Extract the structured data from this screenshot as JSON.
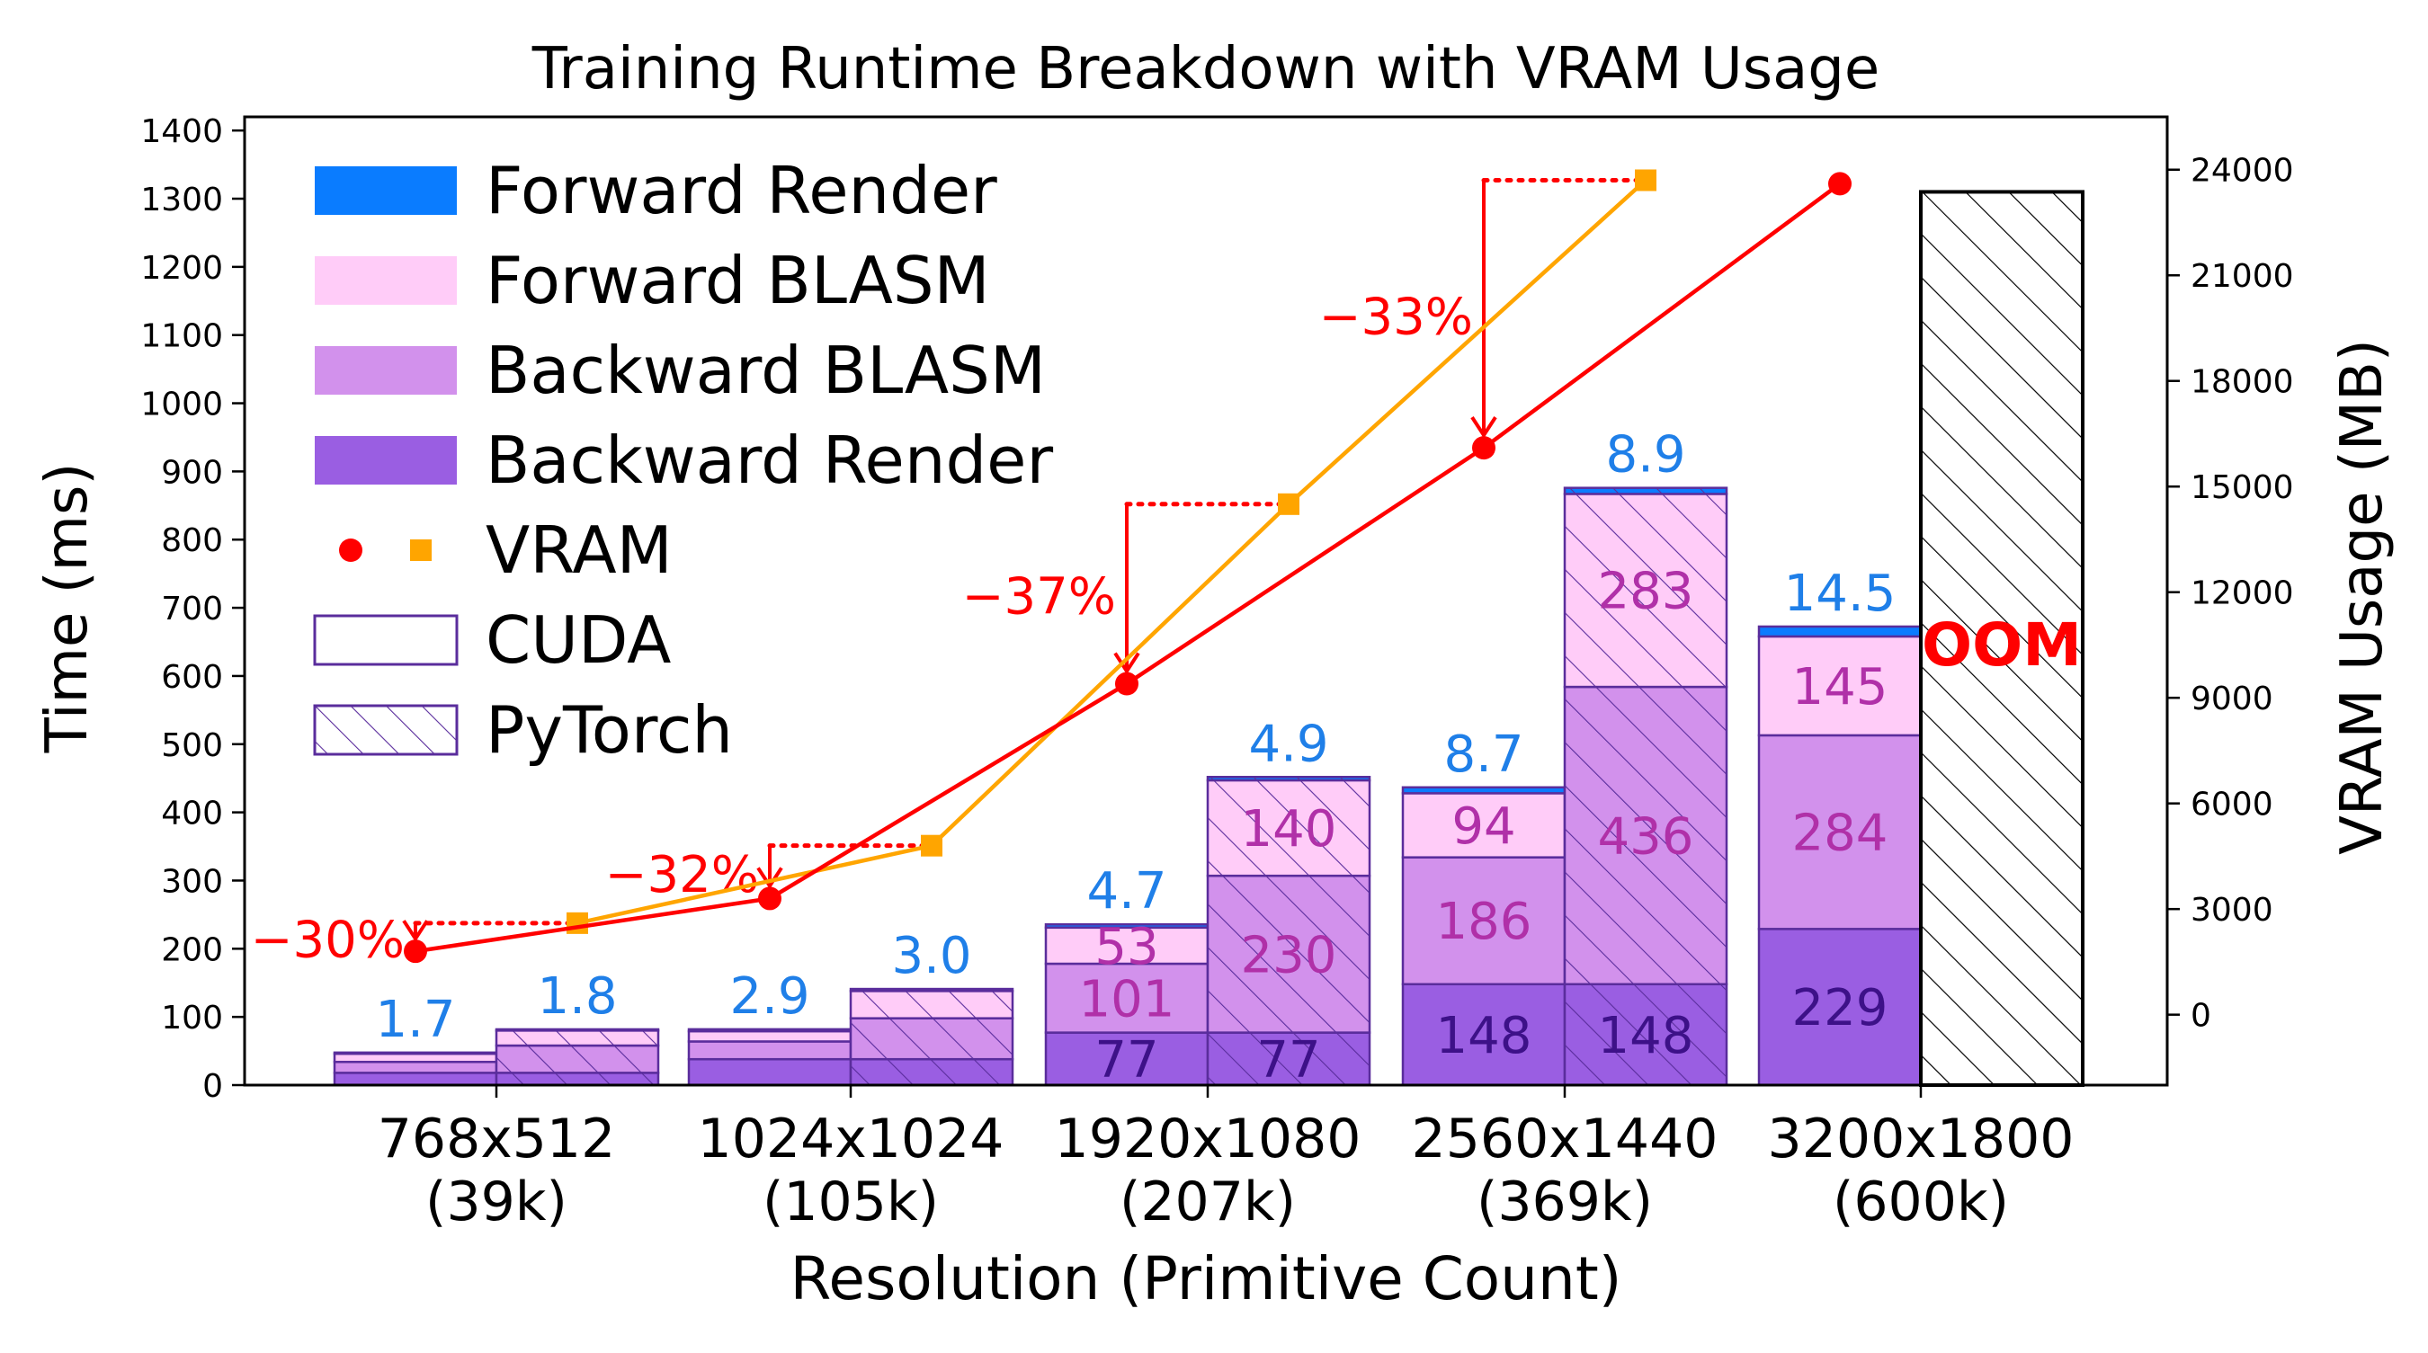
{
  "chart_data": {
    "type": "bar",
    "title": "Training Runtime Breakdown with VRAM Usage",
    "xlabel": "Resolution (Primitive Count)",
    "ylabel": "Time (ms)",
    "y2label": "VRAM Usage (MB)",
    "ylim": [
      0,
      1420
    ],
    "y2lim": [
      -2000,
      25500
    ],
    "yticks": [
      "0",
      "100",
      "200",
      "300",
      "400",
      "500",
      "600",
      "700",
      "800",
      "900",
      "1000",
      "1100",
      "1200",
      "1300",
      "1400"
    ],
    "y2ticks": [
      "0",
      "3000",
      "6000",
      "9000",
      "12000",
      "15000",
      "18000",
      "21000",
      "24000"
    ],
    "categories": [
      {
        "res": "768x512",
        "count": "(39k)"
      },
      {
        "res": "1024x1024",
        "count": "(105k)"
      },
      {
        "res": "1920x1080",
        "count": "(207k)"
      },
      {
        "res": "2560x1440",
        "count": "(369k)"
      },
      {
        "res": "3200x1800",
        "count": "(600k)"
      }
    ],
    "series_names": [
      "Forward Render",
      "Forward BLASM",
      "Backward BLASM",
      "Backward Render"
    ],
    "colors": {
      "forward_render": "#0a7cff",
      "forward_blasm": "#ffccf8",
      "backward_blasm": "#d291ec",
      "backward_render": "#9a5ee2",
      "edge": "#5a2d9c",
      "vram_cuda": "#ff0000",
      "vram_pytorch": "#ffa500",
      "total_label": "#1f7fe8",
      "mid_label": "#b030a8",
      "bottom_label": "#3d1188",
      "oom": "#ff0000"
    },
    "bars": [
      {
        "group": 0,
        "impl": "CUDA",
        "backward_render": 18,
        "backward_blasm": 16,
        "forward_blasm": 12,
        "forward_render": 1.7,
        "total_label": "1.7"
      },
      {
        "group": 0,
        "impl": "PyTorch",
        "backward_render": 18,
        "backward_blasm": 40,
        "forward_blasm": 22,
        "forward_render": 1.8,
        "total_label": "1.8"
      },
      {
        "group": 1,
        "impl": "CUDA",
        "backward_render": 38,
        "backward_blasm": 26,
        "forward_blasm": 15,
        "forward_render": 2.9,
        "total_label": "2.9"
      },
      {
        "group": 1,
        "impl": "PyTorch",
        "backward_render": 38,
        "backward_blasm": 60,
        "forward_blasm": 40,
        "forward_render": 3.0,
        "total_label": "3.0"
      },
      {
        "group": 2,
        "impl": "CUDA",
        "backward_render": 77,
        "backward_blasm": 101,
        "forward_blasm": 53,
        "forward_render": 4.7,
        "total_label": "4.7",
        "seg_labels": [
          "77",
          "101",
          "53"
        ]
      },
      {
        "group": 2,
        "impl": "PyTorch",
        "backward_render": 77,
        "backward_blasm": 230,
        "forward_blasm": 140,
        "forward_render": 4.9,
        "total_label": "4.9",
        "seg_labels": [
          "77",
          "230",
          "140"
        ]
      },
      {
        "group": 3,
        "impl": "CUDA",
        "backward_render": 148,
        "backward_blasm": 186,
        "forward_blasm": 94,
        "forward_render": 8.7,
        "total_label": "8.7",
        "seg_labels": [
          "148",
          "186",
          "94"
        ]
      },
      {
        "group": 3,
        "impl": "PyTorch",
        "backward_render": 148,
        "backward_blasm": 436,
        "forward_blasm": 283,
        "forward_render": 8.9,
        "total_label": "8.9",
        "seg_labels": [
          "148",
          "436",
          "283"
        ]
      },
      {
        "group": 4,
        "impl": "CUDA",
        "backward_render": 229,
        "backward_blasm": 284,
        "forward_blasm": 145,
        "forward_render": 14.5,
        "total_label": "14.5",
        "seg_labels": [
          "229",
          "284",
          "145"
        ]
      }
    ],
    "oom_bar": {
      "group": 4,
      "impl": "PyTorch",
      "value": 1310,
      "label": "OOM"
    },
    "vram_cuda": [
      1800,
      3300,
      9400,
      16100,
      23600
    ],
    "vram_pytorch": [
      2600,
      4800,
      14500,
      23700
    ],
    "reductions": [
      {
        "group": 0,
        "label": "−30%"
      },
      {
        "group": 1,
        "label": "−32%"
      },
      {
        "group": 2,
        "label": "−37%"
      },
      {
        "group": 3,
        "label": "−33%"
      }
    ],
    "legend": {
      "position": "top-left",
      "entries": [
        "Forward Render",
        "Forward BLASM",
        "Backward BLASM",
        "Backward Render",
        "VRAM",
        "CUDA",
        "PyTorch"
      ]
    }
  }
}
